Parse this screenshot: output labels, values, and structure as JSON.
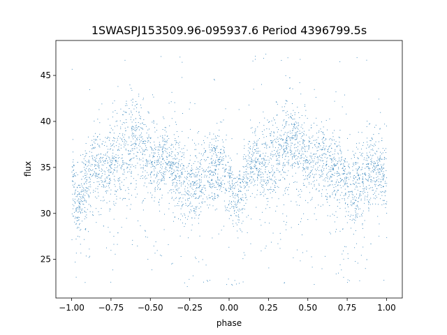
{
  "chart_data": {
    "type": "scatter",
    "title": "1SWASPJ153509.96-095937.6 Period 4396799.5s",
    "xlabel": "phase",
    "ylabel": "flux",
    "xlim": [
      -1.1,
      1.1
    ],
    "ylim": [
      20.8,
      48.8
    ],
    "xticks": [
      -1.0,
      -0.75,
      -0.5,
      -0.25,
      0.0,
      0.25,
      0.5,
      0.75,
      1.0
    ],
    "xtick_labels": [
      "−1.00",
      "−0.75",
      "−0.50",
      "−0.25",
      "0.00",
      "0.25",
      "0.50",
      "0.75",
      "1.00"
    ],
    "yticks": [
      25,
      30,
      35,
      40,
      45
    ],
    "ytick_labels": [
      "25",
      "30",
      "35",
      "40",
      "45"
    ],
    "grid": false,
    "series": [
      {
        "color": "#1f77b4",
        "marker_size": "tiny",
        "phase_profile": {
          "phase": [
            0.0,
            0.04,
            0.08,
            0.12,
            0.16,
            0.2,
            0.24,
            0.28,
            0.32,
            0.36,
            0.4,
            0.44,
            0.48,
            0.52,
            0.56,
            0.6,
            0.64,
            0.68,
            0.72,
            0.76,
            0.8,
            0.84,
            0.88,
            0.92,
            0.96,
            1.0
          ],
          "flux_mean": [
            33.0,
            31.0,
            32.5,
            35.0,
            35.5,
            34.5,
            35.5,
            36.0,
            37.0,
            37.5,
            38.0,
            37.0,
            36.0,
            35.0,
            35.5,
            36.0,
            35.0,
            34.5,
            33.5,
            32.5,
            33.0,
            34.0,
            34.5,
            35.0,
            35.0,
            33.0
          ],
          "flux_spread": [
            2.0,
            1.5,
            2.0,
            2.0,
            2.0,
            2.0,
            2.5,
            2.5,
            2.5,
            2.5,
            2.5,
            2.5,
            2.0,
            2.0,
            2.0,
            2.0,
            2.0,
            2.0,
            2.0,
            2.0,
            2.0,
            2.0,
            2.0,
            2.0,
            2.0,
            2.0
          ]
        },
        "phase_range": [
          -1.0,
          1.0
        ],
        "flux_range": [
          22.0,
          47.5
        ]
      }
    ]
  }
}
